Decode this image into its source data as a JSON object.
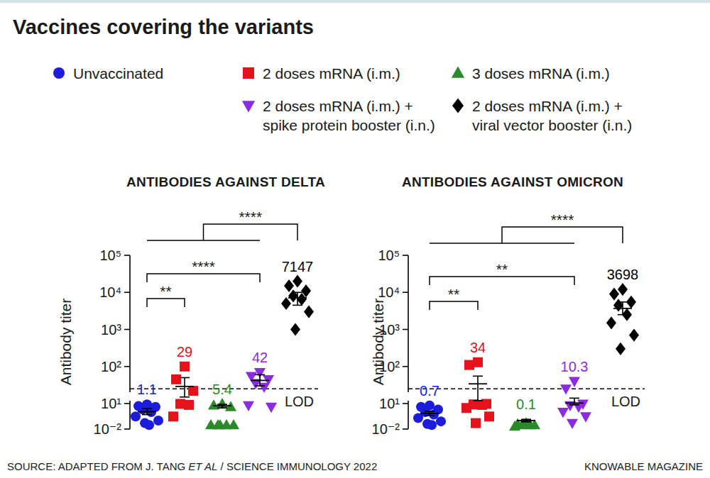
{
  "title": "Vaccines covering the variants",
  "source": [
    "SOURCE: ADAPTED FROM J. TANG ",
    "ET AL",
    " / SCIENCE IMMUNOLOGY 2022"
  ],
  "credit": "KNOWABLE MAGAZINE",
  "chart_data": [
    {
      "type": "scatter",
      "title": "ANTIBODIES AGAINST DELTA",
      "y_label": "Antibody titer",
      "log": "y",
      "legend": "top",
      "tick_labels": "y",
      "data_labels": true,
      "ylim": [
        0.01,
        100000
      ],
      "yticks": [
        {
          "value": 0.01,
          "label": "10⁻²"
        },
        {
          "value": 10,
          "label": "10¹"
        },
        {
          "value": 100,
          "label": "10²"
        },
        {
          "value": 1000,
          "label": "10³"
        },
        {
          "value": 10000,
          "label": "10⁴"
        },
        {
          "value": 100000,
          "label": "10⁵"
        }
      ],
      "reference_line": {
        "value": 25,
        "label": "LOD"
      },
      "comparisons": [
        {
          "groups": [
            0,
            1
          ],
          "label": "**"
        },
        {
          "groups": [
            0,
            3
          ],
          "label": "****"
        },
        {
          "groups": [
            0,
            3,
            4
          ],
          "label": "****"
        }
      ],
      "series": [
        {
          "name": "Unvaccinated",
          "color": "#1c1cdc",
          "marker": "circle",
          "values": [
            8,
            5,
            4,
            2,
            1,
            0.3,
            0.1,
            0.05,
            0.03
          ],
          "mean": 1.1,
          "error_range": [
            0.5,
            2.5
          ]
        },
        {
          "name": "2 doses mRNA (i.m.)",
          "color": "#e3121b",
          "marker": "square",
          "values": [
            100,
            45,
            22,
            9,
            7,
            0.3
          ],
          "mean": 29,
          "error_range": [
            15,
            50
          ]
        },
        {
          "name": "3 doses mRNA (i.m.)",
          "color": "#2a8a2a",
          "marker": "triangle",
          "values": [
            9,
            6,
            4,
            0.03,
            0.03,
            0.03,
            0.03,
            0.03
          ],
          "mean": 5.4,
          "error_range": [
            3,
            8
          ]
        },
        {
          "name": "2 doses mRNA (i.m.) +\nspike protein booster (i.n.)",
          "color": "#8b2be2",
          "marker": "triangle-down",
          "values": [
            70,
            55,
            45,
            35,
            28,
            6,
            4
          ],
          "mean": 42,
          "error_range": [
            30,
            60
          ]
        },
        {
          "name": "2 doses mRNA (i.m.) +\nviral vector booster (i.n.)",
          "color": "#000000",
          "marker": "diamond",
          "values": [
            20000,
            15000,
            11000,
            8000,
            6500,
            5000,
            3000,
            1000
          ],
          "mean": 7147,
          "error_range": [
            4500,
            10000
          ]
        }
      ]
    },
    {
      "type": "scatter",
      "title": "ANTIBODIES AGAINST OMICRON",
      "y_label": "Antibody titer",
      "log": "y",
      "tick_labels": "y",
      "data_labels": true,
      "ylim": [
        0.01,
        100000
      ],
      "yticks": [
        {
          "value": 0.01,
          "label": "10⁻²"
        },
        {
          "value": 10,
          "label": "10¹"
        },
        {
          "value": 100,
          "label": "10²"
        },
        {
          "value": 1000,
          "label": "10³"
        },
        {
          "value": 10000,
          "label": "10⁴"
        },
        {
          "value": 100000,
          "label": "10⁵"
        }
      ],
      "reference_line": {
        "value": 25,
        "label": "LOD"
      },
      "comparisons": [
        {
          "groups": [
            0,
            1
          ],
          "label": "**"
        },
        {
          "groups": [
            0,
            3
          ],
          "label": "**"
        },
        {
          "groups": [
            0,
            3,
            4
          ],
          "label": "****"
        }
      ],
      "series": [
        {
          "color": "#1c1cdc",
          "marker": "circle",
          "values": [
            6,
            4,
            2,
            1,
            0.5,
            0.2,
            0.08,
            0.04,
            0.03
          ],
          "mean": 0.7,
          "error_range": [
            0.4,
            1.2
          ]
        },
        {
          "color": "#e3121b",
          "marker": "square",
          "values": [
            130,
            110,
            9,
            8,
            7,
            3,
            0.3,
            0.05
          ],
          "mean": 34,
          "error_range": [
            12,
            55
          ]
        },
        {
          "color": "#2a8a2a",
          "marker": "triangle",
          "values": [
            0.05,
            0.04,
            0.03,
            0.03,
            0.03,
            0.02
          ],
          "mean": 0.1,
          "error_range": [
            0.07,
            0.14
          ]
        },
        {
          "color": "#8b2be2",
          "marker": "triangle-down",
          "values": [
            40,
            25,
            9,
            6,
            4,
            1,
            0.3,
            0.05
          ],
          "mean": 10.3,
          "error_range": [
            7,
            14
          ]
        },
        {
          "color": "#000000",
          "marker": "diamond",
          "values": [
            12000,
            9000,
            5500,
            4500,
            2500,
            1500,
            700,
            300
          ],
          "mean": 3698,
          "error_range": [
            2500,
            5500
          ]
        }
      ]
    }
  ]
}
